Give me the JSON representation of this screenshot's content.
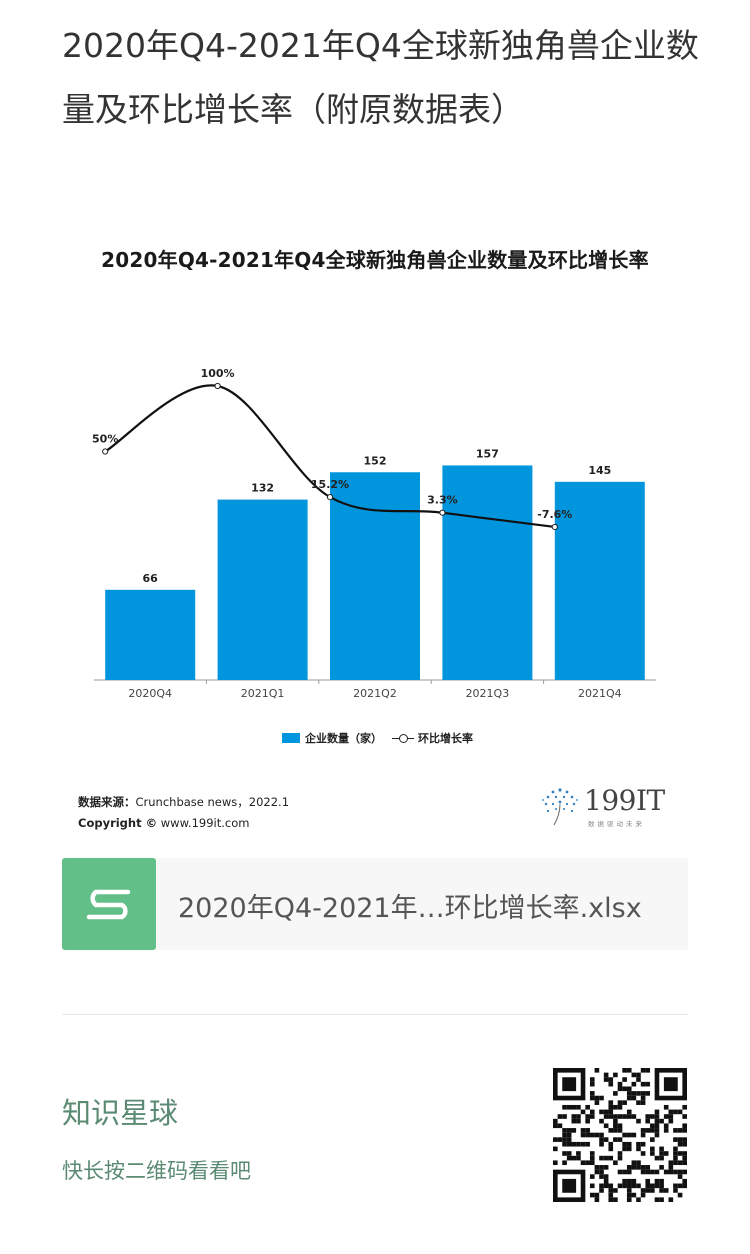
{
  "post": {
    "title": "2020年Q4-2021年Q4全球新独角兽企业数量及环比增长率（附原数据表）"
  },
  "chart_data": {
    "type": "bar",
    "title": "2020年Q4-2021年Q4全球新独角兽企业数量及环比增长率",
    "categories": [
      "2020Q4",
      "2021Q1",
      "2021Q2",
      "2021Q3",
      "2021Q4"
    ],
    "series": [
      {
        "name": "企业数量（家）",
        "type": "bar",
        "values": [
          66,
          132,
          152,
          157,
          145
        ],
        "labels": [
          "66",
          "132",
          "152",
          "157",
          "145"
        ],
        "color": "#0095dc"
      },
      {
        "name": "环比增长率",
        "type": "line",
        "values": [
          50,
          100,
          15.2,
          3.3,
          -7.6
        ],
        "labels": [
          "50%",
          "100%",
          "15.2%",
          "3.3%",
          "-7.6%"
        ],
        "color": "#111111"
      }
    ],
    "grid": false,
    "legend": "bottom"
  },
  "legend": {
    "bar_label": "企业数量（家）",
    "line_label": "环比增长率"
  },
  "source": {
    "label": "数据来源：",
    "text": "Crunchbase news，2022.1",
    "copyright_label": "Copyright ©",
    "copyright_site": "www.199it.com"
  },
  "brand": {
    "name": "199IT",
    "tagline": "数据驱动未来"
  },
  "attachment": {
    "file_name": "2020年Q4-2021年…环比增长率.xlsx",
    "icon": "spreadsheet-s-icon",
    "icon_color": "#62bf87"
  },
  "planet": {
    "title": "知识星球",
    "hint": "快长按二维码看看吧"
  }
}
